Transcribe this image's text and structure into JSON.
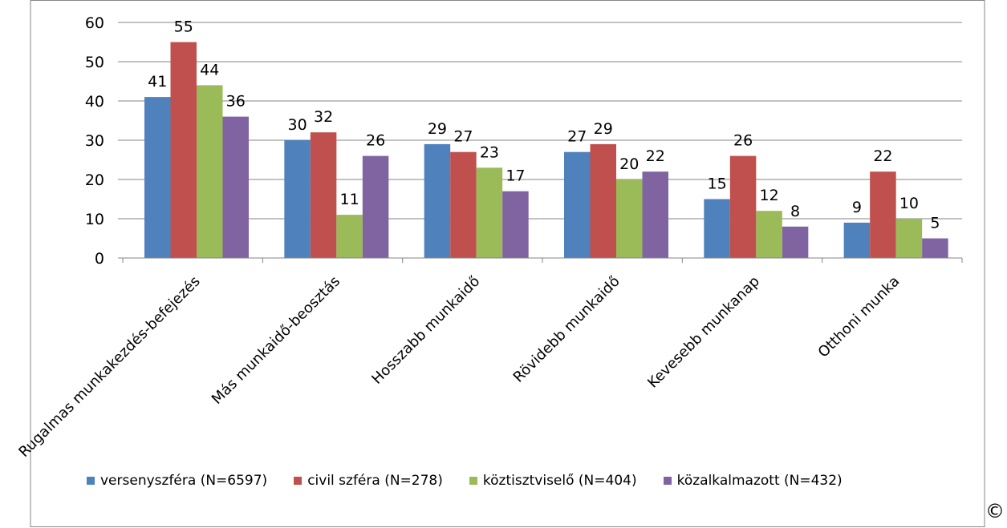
{
  "chart_data": {
    "type": "bar",
    "title": "",
    "xlabel": "",
    "ylabel": "",
    "ylim": [
      0,
      60
    ],
    "yticks": [
      0,
      10,
      20,
      30,
      40,
      50,
      60
    ],
    "grid": true,
    "legend_position": "bottom",
    "categories": [
      "Rugalmas munkakezdés-befejezés",
      "Más munkaidő-beosztás",
      "Hosszabb munkaidő",
      "Rövidebb munkaidő",
      "Kevesebb munkanap",
      "Otthoni munka"
    ],
    "series": [
      {
        "name": "versenyszféra (N=6597)",
        "color": "#4f81bd",
        "values": [
          41,
          30,
          29,
          27,
          15,
          9
        ]
      },
      {
        "name": "civil szféra (N=278)",
        "color": "#c0504d",
        "values": [
          55,
          32,
          27,
          29,
          26,
          22
        ]
      },
      {
        "name": "köztisztviselő (N=404)",
        "color": "#9bbb59",
        "values": [
          44,
          11,
          23,
          20,
          12,
          10
        ]
      },
      {
        "name": "közalkalmazott (N=432)",
        "color": "#8064a2",
        "values": [
          36,
          26,
          17,
          22,
          8,
          5
        ]
      }
    ]
  },
  "corner_mark": "©"
}
